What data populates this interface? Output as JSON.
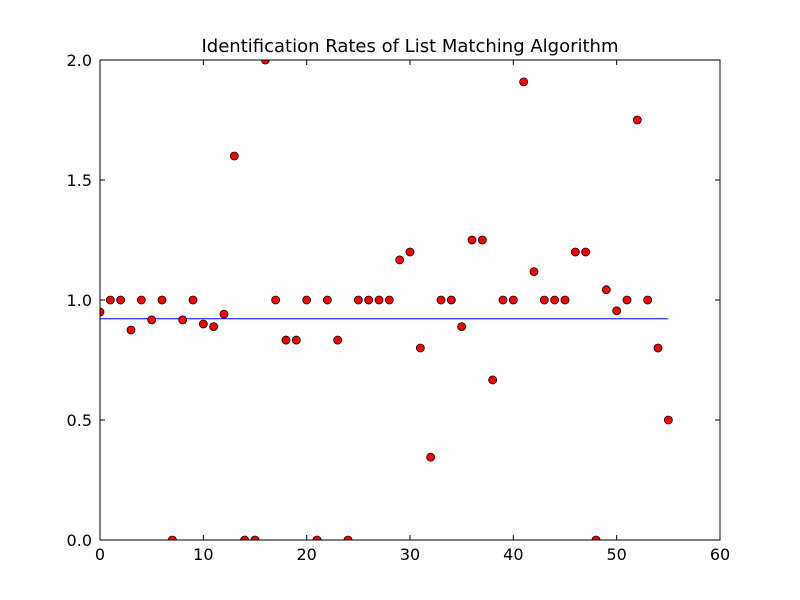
{
  "chart_data": {
    "type": "scatter",
    "title": "Identification Rates of List Matching Algorithm",
    "xlabel": "",
    "ylabel": "",
    "xlim": [
      0,
      60
    ],
    "ylim": [
      0.0,
      2.0
    ],
    "xticks": [
      0,
      10,
      20,
      30,
      40,
      50,
      60
    ],
    "xtick_labels": [
      "0",
      "10",
      "20",
      "30",
      "40",
      "50",
      "60"
    ],
    "yticks": [
      0.0,
      0.5,
      1.0,
      1.5,
      2.0
    ],
    "ytick_labels": [
      "0.0",
      "0.5",
      "1.0",
      "1.5",
      "2.0"
    ],
    "grid": false,
    "series": [
      {
        "marker": "circle",
        "color": "#ff0000",
        "edge_color": "#000000",
        "x": [
          0,
          1,
          2,
          3,
          4,
          5,
          6,
          7,
          8,
          9,
          10,
          11,
          12,
          13,
          14,
          15,
          16,
          17,
          18,
          19,
          20,
          21,
          22,
          23,
          24,
          25,
          26,
          27,
          28,
          29,
          30,
          31,
          32,
          33,
          34,
          35,
          36,
          37,
          38,
          39,
          40,
          41,
          42,
          43,
          44,
          45,
          46,
          47,
          48,
          49,
          50,
          51,
          52,
          53,
          54,
          55
        ],
        "y": [
          0.95,
          1.0,
          1.0,
          0.875,
          1.0,
          0.917,
          1.0,
          0.0,
          0.917,
          1.0,
          0.9,
          0.889,
          0.941,
          1.6,
          0.0,
          0.0,
          2.0,
          1.0,
          0.833,
          0.833,
          1.0,
          0.0,
          1.0,
          0.833,
          0.0,
          1.0,
          1.0,
          1.0,
          1.0,
          1.167,
          1.2,
          0.8,
          0.345,
          1.0,
          1.0,
          0.889,
          1.25,
          1.25,
          0.667,
          1.0,
          1.0,
          1.909,
          1.118,
          1.0,
          1.0,
          1.0,
          1.2,
          1.2,
          0.0,
          1.043,
          0.955,
          1.0,
          1.75,
          1.0,
          0.8,
          0.5
        ]
      },
      {
        "marker": "line",
        "color": "#0000ff",
        "x": [
          0,
          55
        ],
        "y": [
          0.922,
          0.922
        ]
      }
    ]
  }
}
